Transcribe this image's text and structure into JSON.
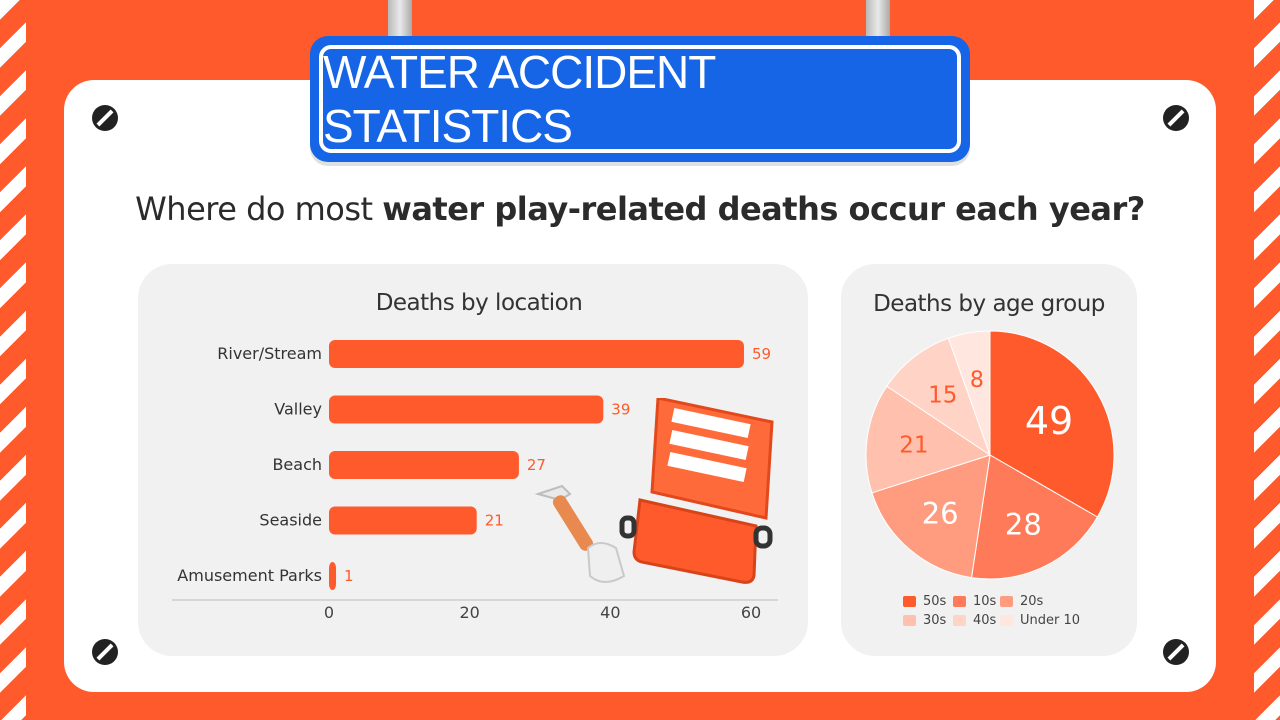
{
  "header": {
    "title": "WATER ACCIDENT STATISTICS"
  },
  "question": {
    "prefix": "Where do most ",
    "bold": "water play-related deaths occur each year?"
  },
  "chart_data": [
    {
      "type": "bar",
      "orientation": "horizontal",
      "title": "Deaths by location",
      "categories": [
        "River/Stream",
        "Valley",
        "Beach",
        "Seaside",
        "Amusement Parks"
      ],
      "values": [
        59,
        39,
        27,
        21,
        1
      ],
      "xlim": [
        0,
        60
      ],
      "xticks": [
        0,
        20,
        40,
        60
      ],
      "color": "#ff5a2c",
      "data_labels": true,
      "grid": false
    },
    {
      "type": "pie",
      "title": "Deaths by age group",
      "labels": [
        "50s",
        "10s",
        "20s",
        "30s",
        "40s",
        "Under 10"
      ],
      "values": [
        49,
        28,
        26,
        21,
        15,
        8
      ],
      "colors": [
        "#ff5a2c",
        "#ff7a58",
        "#ff9c80",
        "#ffc0ad",
        "#ffd4c6",
        "#ffe6df"
      ],
      "legend": "bottom",
      "data_labels": true
    }
  ]
}
